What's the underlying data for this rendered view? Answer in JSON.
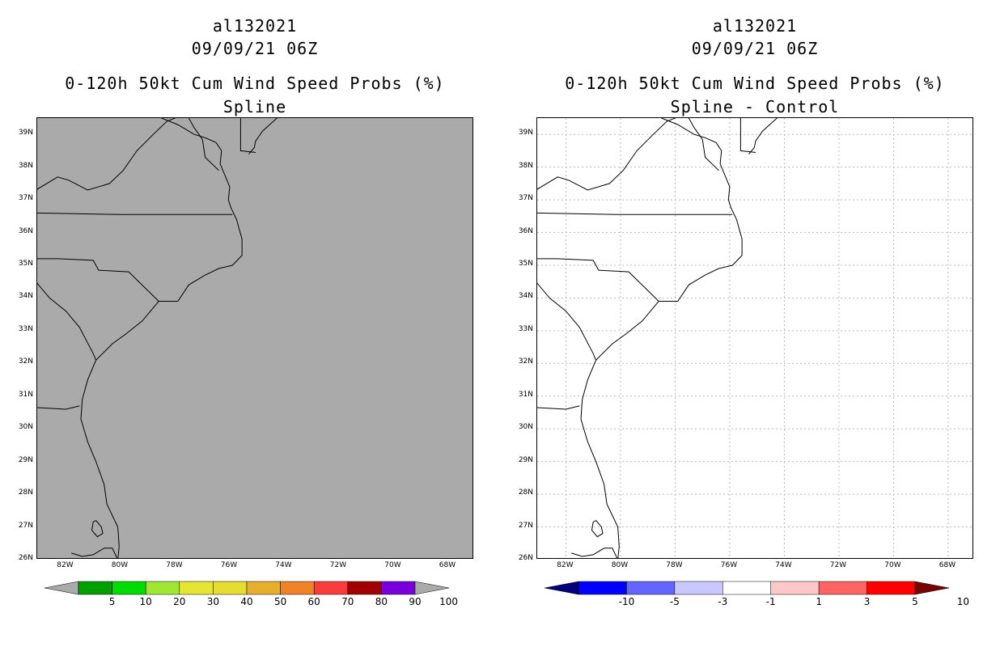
{
  "left_panel": {
    "title_lines": [
      "al132021",
      "09/09/21 06Z",
      "0-120h 50kt Cum Wind Speed Probs (%)",
      "Spline"
    ],
    "background": "#aaaaaa",
    "colorbar": {
      "colors": [
        "#aaaaaa",
        "#00a000",
        "#00dc00",
        "#a0e632",
        "#e6e632",
        "#e6dc32",
        "#e6af2d",
        "#f08228",
        "#fa3c3c",
        "#a00000",
        "#7800dc",
        "#aaaaaa"
      ],
      "labels": [
        "5",
        "10",
        "20",
        "30",
        "40",
        "50",
        "60",
        "70",
        "80",
        "90",
        "100"
      ]
    }
  },
  "right_panel": {
    "title_lines": [
      "al132021",
      "09/09/21 06Z",
      "0-120h 50kt Cum Wind Speed Probs (%)",
      "Spline - Control"
    ],
    "background": "#ffffff",
    "colorbar": {
      "colors": [
        "#00007a",
        "#0000ff",
        "#6464ff",
        "#c8c8ff",
        "#ffffff",
        "#ffc8c8",
        "#ff6464",
        "#ff0000",
        "#7a0000"
      ],
      "labels": [
        "-10",
        "-5",
        "-3",
        "-1",
        "1",
        "3",
        "5",
        "10"
      ]
    }
  },
  "axes": {
    "lat_labels": [
      "39N",
      "38N",
      "37N",
      "36N",
      "35N",
      "34N",
      "33N",
      "32N",
      "31N",
      "30N",
      "29N",
      "28N",
      "27N",
      "26N"
    ],
    "lon_labels": [
      "82W",
      "80W",
      "78W",
      "76W",
      "74W",
      "72W",
      "70W",
      "68W"
    ]
  }
}
